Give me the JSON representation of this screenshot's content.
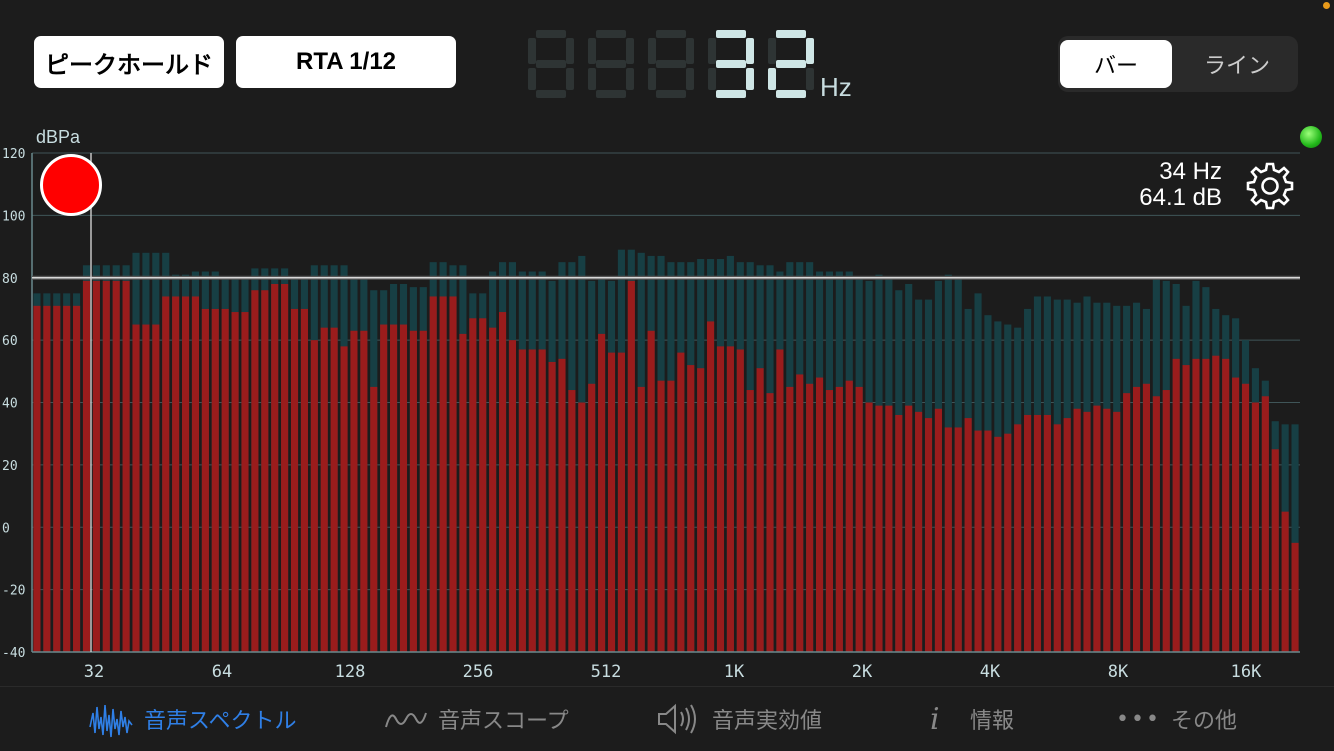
{
  "top": {
    "peak_hold_label": "ピークホールド",
    "rta_label": "RTA 1/12",
    "frequency_digits": "32",
    "frequency_unit": "Hz",
    "view_mode": {
      "bar_label": "バー",
      "line_label": "ライン",
      "selected": "バー"
    }
  },
  "plot": {
    "unit_label": "dBPa",
    "cursor_freq": "34 Hz",
    "cursor_db": "64.1 dB",
    "peak_hold_level_db": 80,
    "status_led_color": "#2fbf2a"
  },
  "chart_data": {
    "type": "bar",
    "y_axis": {
      "ticks": [
        "120",
        "100",
        "80",
        "60",
        "40",
        "20",
        "0",
        "-20",
        "-40"
      ],
      "ylim": [
        -40,
        120
      ]
    },
    "x_ticks": [
      "32",
      "64",
      "128",
      "256",
      "512",
      "1K",
      "2K",
      "4K",
      "8K",
      "16K"
    ],
    "colors": {
      "current": "#9a1c1c",
      "peak": "#173f44"
    },
    "series": [
      {
        "role": "current",
        "values": [
          71,
          71,
          71,
          71,
          71,
          79,
          79,
          79,
          79,
          79,
          65,
          65,
          65,
          74,
          74,
          74,
          74,
          70,
          70,
          70,
          69,
          69,
          76,
          76,
          78,
          78,
          70,
          70,
          60,
          64,
          64,
          58,
          63,
          63,
          45,
          65,
          65,
          65,
          63,
          63,
          74,
          74,
          74,
          62,
          67,
          67,
          64,
          69,
          60,
          57,
          57,
          57,
          53,
          54,
          44,
          40,
          46,
          62,
          56,
          56,
          79,
          45,
          63,
          47,
          47,
          56,
          52,
          51,
          66,
          58,
          58,
          57,
          44,
          51,
          43,
          57,
          45,
          49,
          46,
          48,
          44,
          45,
          47,
          45,
          40,
          39,
          39,
          36,
          39,
          37,
          35,
          38,
          32,
          32,
          35,
          31,
          31,
          29,
          30,
          33,
          36,
          36,
          36,
          33,
          35,
          38,
          37,
          39,
          38,
          37,
          43,
          45,
          46,
          42,
          44,
          54,
          52,
          54,
          54,
          55,
          54,
          48,
          46,
          40,
          42,
          25,
          5,
          -5
        ]
      },
      {
        "role": "peak",
        "values": [
          75,
          75,
          75,
          75,
          75,
          84,
          84,
          84,
          84,
          84,
          88,
          88,
          88,
          88,
          81,
          81,
          82,
          82,
          82,
          80,
          80,
          80,
          83,
          83,
          83,
          83,
          80,
          80,
          84,
          84,
          84,
          84,
          80,
          80,
          76,
          76,
          78,
          78,
          77,
          77,
          85,
          85,
          84,
          84,
          75,
          75,
          82,
          85,
          85,
          82,
          82,
          82,
          79,
          85,
          85,
          87,
          79,
          80,
          79,
          89,
          89,
          88,
          87,
          87,
          85,
          85,
          85,
          86,
          86,
          86,
          87,
          85,
          85,
          84,
          84,
          82,
          85,
          85,
          85,
          82,
          82,
          82,
          82,
          80,
          79,
          81,
          80,
          76,
          78,
          73,
          73,
          79,
          81,
          80,
          70,
          75,
          68,
          66,
          65,
          64,
          70,
          74,
          74,
          73,
          73,
          72,
          74,
          72,
          72,
          71,
          71,
          72,
          70,
          80,
          79,
          78,
          71,
          79,
          77,
          70,
          68,
          67,
          60,
          51,
          47,
          34,
          33,
          33
        ]
      }
    ]
  },
  "nav": {
    "spectrum": "音声スペクトル",
    "scope": "音声スコープ",
    "rms": "音声実効値",
    "info": "情報",
    "other": "その他"
  }
}
